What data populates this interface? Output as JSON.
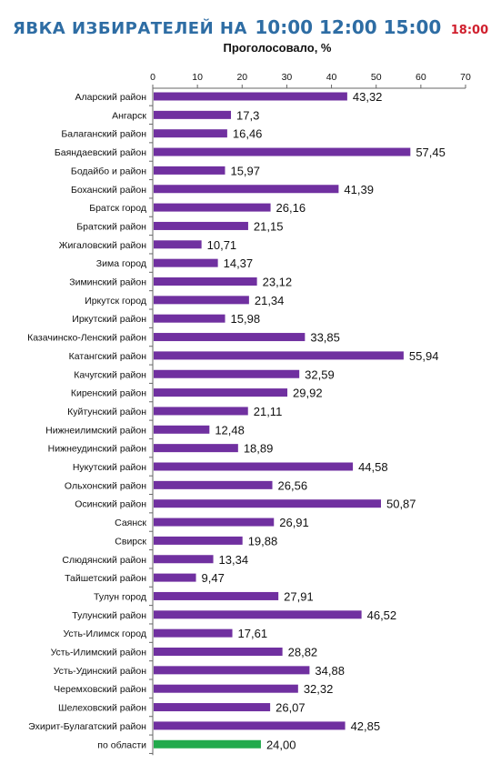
{
  "header": {
    "title": "ЯВКА ИЗБИРАТЕЛЕЙ НА",
    "times": "10:00 12:00 15:00",
    "current_time": "18:00",
    "title_color": "#2e6da4",
    "current_time_color": "#d0202e"
  },
  "chart_data": {
    "type": "bar",
    "orientation": "horizontal",
    "title": "ЯВКА ИЗБИРАТЕЛЕЙ НА 10:00 12:00 15:00 18:00",
    "xlabel": "Проголосовало, %",
    "ylabel": "",
    "xlim": [
      0,
      70
    ],
    "ticks": [
      "0",
      "10",
      "20",
      "30",
      "40",
      "50",
      "60",
      "70"
    ],
    "grid": false,
    "bar_color": "#7030a0",
    "total_bar_color": "#22aa4c",
    "categories": [
      "Аларский район",
      "Ангарск",
      "Балаганский район",
      "Баяндаевский район",
      "Бодайбо и район",
      "Боханский район",
      "Братск город",
      "Братский район",
      "Жигаловский район",
      "Зима город",
      "Зиминский район",
      "Иркутск город",
      "Иркутский район",
      "Казачинско-Ленский район",
      "Катангский район",
      "Качугский район",
      "Киренский район",
      "Куйтунский район",
      "Нижнеилимский район",
      "Нижнеудинский район",
      "Нукутский район",
      "Ольхонский район",
      "Осинский район",
      "Саянск",
      "Свирск",
      "Слюдянский район",
      "Тайшетский район",
      "Тулун город",
      "Тулунский район",
      "Усть-Илимск город",
      "Усть-Илимский район",
      "Усть-Удинский район",
      "Черемховский район",
      "Шелеховский район",
      "Эхирит-Булагатский район",
      "по области"
    ],
    "values": [
      43.32,
      17.3,
      16.46,
      57.45,
      15.97,
      41.39,
      26.16,
      21.15,
      10.71,
      14.37,
      23.12,
      21.34,
      15.98,
      33.85,
      55.94,
      32.59,
      29.92,
      21.11,
      12.48,
      18.89,
      44.58,
      26.56,
      50.87,
      26.91,
      19.88,
      13.34,
      9.47,
      27.91,
      46.52,
      17.61,
      28.82,
      34.88,
      32.32,
      26.07,
      42.85,
      24.0
    ],
    "value_labels": [
      "43,32",
      "17,3",
      "16,46",
      "57,45",
      "15,97",
      "41,39",
      "26,16",
      "21,15",
      "10,71",
      "14,37",
      "23,12",
      "21,34",
      "15,98",
      "33,85",
      "55,94",
      "32,59",
      "29,92",
      "21,11",
      "12,48",
      "18,89",
      "44,58",
      "26,56",
      "50,87",
      "26,91",
      "19,88",
      "13,34",
      "9,47",
      "27,91",
      "46,52",
      "17,61",
      "28,82",
      "34,88",
      "32,32",
      "26,07",
      "42,85",
      "24,00"
    ]
  }
}
